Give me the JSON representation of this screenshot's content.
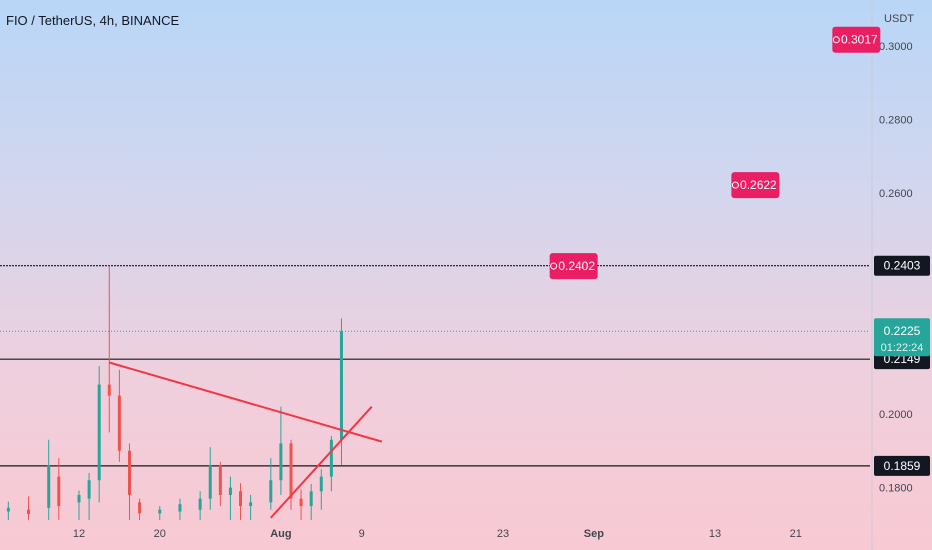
{
  "header": {
    "title": "FIO / TetherUS, 4h, BINANCE",
    "unit": "USDT"
  },
  "chart_data": {
    "type": "candlestick",
    "symbol": "FIO / TetherUS",
    "interval": "4h",
    "exchange": "BINANCE",
    "ylim": [
      0.1712,
      0.3125
    ],
    "y_ticks": [
      "0.3000",
      "0.2800",
      "0.2600",
      "0.2000",
      "0.1800"
    ],
    "x_ticks": [
      {
        "label": "12",
        "date": "2021-07-12"
      },
      {
        "label": "20",
        "date": "2021-07-20"
      },
      {
        "label": "Aug",
        "date": "2021-08-01"
      },
      {
        "label": "9",
        "date": "2021-08-09"
      },
      {
        "label": "23",
        "date": "2021-08-23"
      },
      {
        "label": "Sep",
        "date": "2021-09-01"
      },
      {
        "label": "13",
        "date": "2021-09-13"
      },
      {
        "label": "21",
        "date": "2021-09-21"
      }
    ],
    "horizontal_lines": [
      {
        "value": 0.2403,
        "label": "0.2403"
      },
      {
        "value": 0.2149,
        "label": "0.2149"
      },
      {
        "value": 0.1859,
        "label": "0.1859"
      }
    ],
    "targets": [
      {
        "value": 0.2402,
        "label": "0.2402",
        "date": "2021-08-30"
      },
      {
        "value": 0.2622,
        "label": "0.2622",
        "date": "2021-09-17"
      },
      {
        "value": 0.3017,
        "label": "0.3017",
        "date": "2021-09-27"
      }
    ],
    "last_price": {
      "value": 0.2225,
      "label": "0.2225",
      "countdown": "01:22:24"
    },
    "trendlines": [
      {
        "name": "descending resistance",
        "from": {
          "date": "2021-07-15",
          "value": 0.214
        },
        "to": {
          "date": "2021-08-11",
          "value": 0.1925
        }
      },
      {
        "name": "ascending support",
        "from": {
          "date": "2021-07-31",
          "value": 0.1718
        },
        "to": {
          "date": "2021-08-10",
          "value": 0.202
        }
      }
    ],
    "candles": [
      {
        "date": "2021-07-05",
        "high": 0.1762,
        "low": 0.1712,
        "open": 0.1735,
        "close": 0.1745
      },
      {
        "date": "2021-07-07",
        "high": 0.1776,
        "low": 0.1712,
        "open": 0.174,
        "close": 0.1728
      },
      {
        "date": "2021-07-09",
        "high": 0.193,
        "low": 0.1712,
        "open": 0.1745,
        "close": 0.186
      },
      {
        "date": "2021-07-10",
        "high": 0.188,
        "low": 0.1712,
        "open": 0.183,
        "close": 0.175
      },
      {
        "date": "2021-07-12",
        "high": 0.1792,
        "low": 0.1712,
        "open": 0.176,
        "close": 0.178
      },
      {
        "date": "2021-07-13",
        "high": 0.184,
        "low": 0.1712,
        "open": 0.177,
        "close": 0.182
      },
      {
        "date": "2021-07-14",
        "high": 0.213,
        "low": 0.176,
        "open": 0.182,
        "close": 0.208
      },
      {
        "date": "2021-07-15",
        "high": 0.2403,
        "low": 0.195,
        "open": 0.208,
        "close": 0.205
      },
      {
        "date": "2021-07-16",
        "high": 0.212,
        "low": 0.187,
        "open": 0.205,
        "close": 0.19
      },
      {
        "date": "2021-07-17",
        "high": 0.192,
        "low": 0.1712,
        "open": 0.19,
        "close": 0.178
      },
      {
        "date": "2021-07-18",
        "high": 0.177,
        "low": 0.1712,
        "open": 0.176,
        "close": 0.173
      },
      {
        "date": "2021-07-20",
        "high": 0.175,
        "low": 0.1712,
        "open": 0.173,
        "close": 0.174
      },
      {
        "date": "2021-07-22",
        "high": 0.177,
        "low": 0.1712,
        "open": 0.1735,
        "close": 0.1755
      },
      {
        "date": "2021-07-24",
        "high": 0.179,
        "low": 0.1712,
        "open": 0.174,
        "close": 0.177
      },
      {
        "date": "2021-07-25",
        "high": 0.191,
        "low": 0.174,
        "open": 0.177,
        "close": 0.186
      },
      {
        "date": "2021-07-26",
        "high": 0.187,
        "low": 0.175,
        "open": 0.186,
        "close": 0.178
      },
      {
        "date": "2021-07-27",
        "high": 0.183,
        "low": 0.1712,
        "open": 0.178,
        "close": 0.18
      },
      {
        "date": "2021-07-28",
        "high": 0.1812,
        "low": 0.1712,
        "open": 0.179,
        "close": 0.175
      },
      {
        "date": "2021-07-29",
        "high": 0.178,
        "low": 0.1712,
        "open": 0.175,
        "close": 0.176
      },
      {
        "date": "2021-07-31",
        "high": 0.188,
        "low": 0.174,
        "open": 0.176,
        "close": 0.182
      },
      {
        "date": "2021-08-01",
        "high": 0.202,
        "low": 0.178,
        "open": 0.182,
        "close": 0.192
      },
      {
        "date": "2021-08-02",
        "high": 0.193,
        "low": 0.174,
        "open": 0.192,
        "close": 0.177
      },
      {
        "date": "2021-08-03",
        "high": 0.1795,
        "low": 0.1712,
        "open": 0.177,
        "close": 0.175
      },
      {
        "date": "2021-08-04",
        "high": 0.181,
        "low": 0.1712,
        "open": 0.175,
        "close": 0.179
      },
      {
        "date": "2021-08-05",
        "high": 0.185,
        "low": 0.174,
        "open": 0.179,
        "close": 0.183
      },
      {
        "date": "2021-08-06",
        "high": 0.194,
        "low": 0.179,
        "open": 0.183,
        "close": 0.193
      },
      {
        "date": "2021-08-07",
        "high": 0.226,
        "low": 0.186,
        "open": 0.193,
        "close": 0.2225
      }
    ]
  }
}
